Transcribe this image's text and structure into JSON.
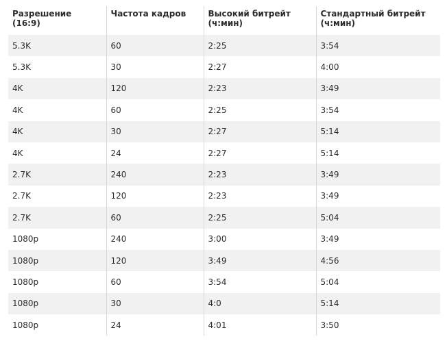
{
  "table": {
    "headers": [
      "Разрешение (16:9)",
      "Частота кадров",
      "Высокий битрейт (ч:мин)",
      "Стандартный битрейт (ч:мин)"
    ],
    "rows": [
      [
        "5.3K",
        "60",
        "2:25",
        "3:54"
      ],
      [
        "5.3K",
        "30",
        "2:27",
        "4:00"
      ],
      [
        "4K",
        "120",
        "2:23",
        "3:49"
      ],
      [
        "4K",
        "60",
        "2:25",
        "3:54"
      ],
      [
        "4K",
        "30",
        "2:27",
        "5:14"
      ],
      [
        "4K",
        "24",
        "2:27",
        "5:14"
      ],
      [
        "2.7K",
        "240",
        "2:23",
        "3:49"
      ],
      [
        "2.7K",
        "120",
        "2:23",
        "3:49"
      ],
      [
        "2.7K",
        "60",
        "2:25",
        "5:04"
      ],
      [
        "1080p",
        "240",
        "3:00",
        "3:49"
      ],
      [
        "1080p",
        "120",
        "3:49",
        "4:56"
      ],
      [
        "1080p",
        "60",
        "3:54",
        "5:04"
      ],
      [
        "1080p",
        "30",
        "4:0",
        "5:14"
      ],
      [
        "1080p",
        "24",
        "4:01",
        "3:50"
      ]
    ]
  }
}
